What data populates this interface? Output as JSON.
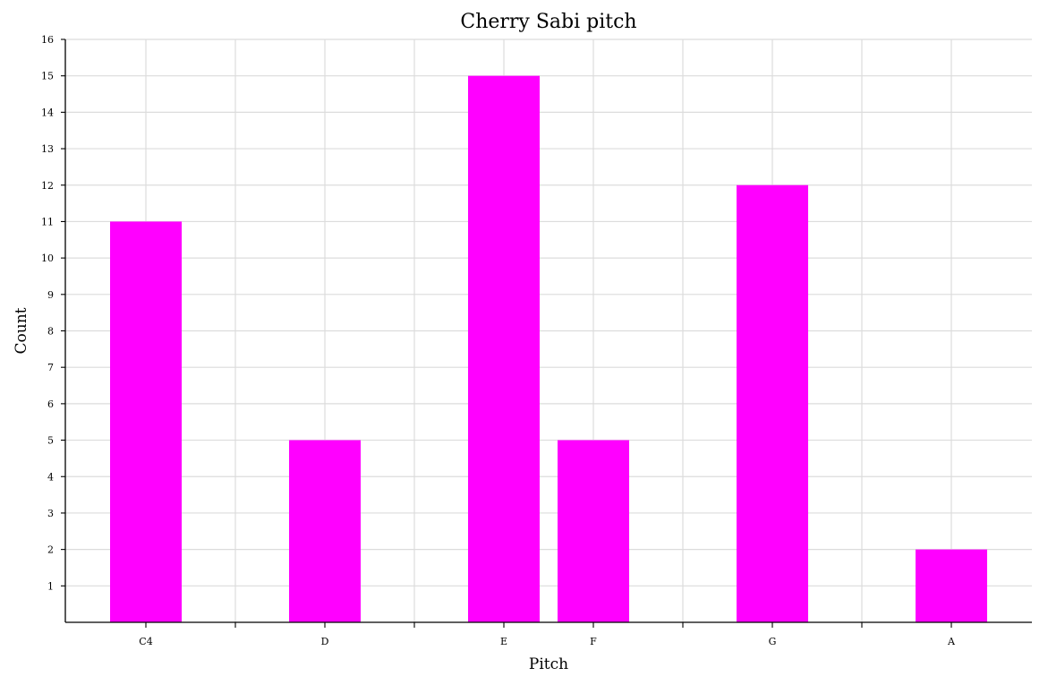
{
  "chart_data": {
    "type": "bar",
    "title": "Cherry Sabi pitch",
    "xlabel": "Pitch",
    "ylabel": "Count",
    "x": [
      0,
      2,
      4,
      5,
      7,
      9
    ],
    "xlim": [
      -0.9,
      9.9
    ],
    "x_ticks": [
      0,
      1,
      2,
      3,
      4,
      5,
      6,
      7,
      8,
      9
    ],
    "x_tick_labels": [
      "C4",
      "",
      "D",
      "",
      "E",
      "F",
      "",
      "G",
      "",
      "A"
    ],
    "categories": [
      "C4",
      "D",
      "E",
      "F",
      "G",
      "A"
    ],
    "values": [
      11,
      5,
      15,
      5,
      12,
      2
    ],
    "ylim": [
      0,
      16
    ],
    "y_ticks": [
      1,
      2,
      3,
      4,
      5,
      6,
      7,
      8,
      9,
      10,
      11,
      12,
      13,
      14,
      15,
      16
    ],
    "grid": true,
    "bar_color": "#ff00ff",
    "grid_color": "#dcdcdc"
  }
}
